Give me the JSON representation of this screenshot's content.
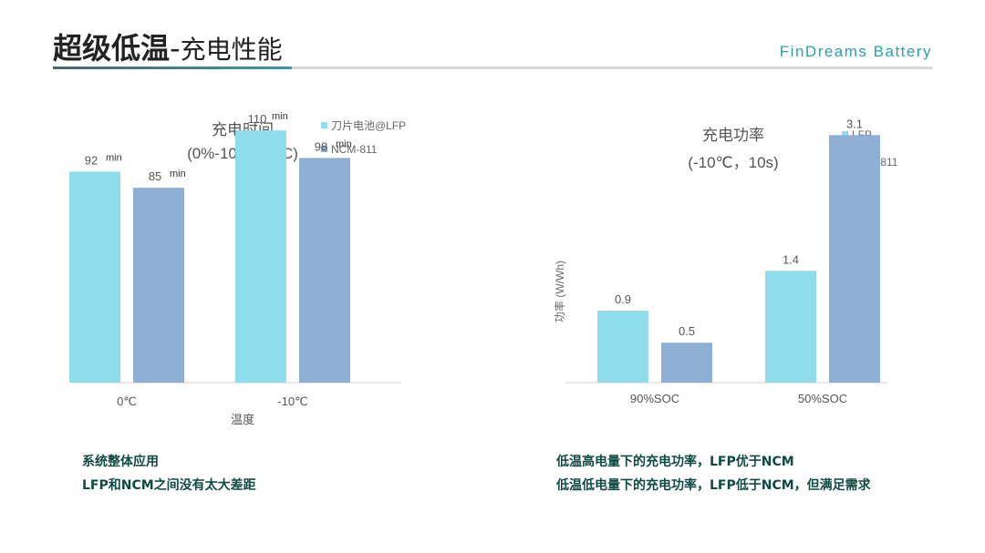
{
  "header": {
    "title_main": "超级低温",
    "title_dash": "-",
    "title_sub": "充电性能",
    "brand": "FinDreams Battery",
    "colors": {
      "title": "#222222",
      "brand": "#2aa0b0",
      "accent_rule": "#3e96a8"
    }
  },
  "chart_data": [
    {
      "type": "bar",
      "title": "充电时间",
      "subtitle": "(0%-100%SOC)",
      "xlabel": "温度",
      "ylabel": "",
      "categories": [
        "0℃",
        "-10℃"
      ],
      "series": [
        {
          "name": "刀片电池@LFP",
          "values": [
            92,
            110
          ],
          "color": "#8fdcec"
        },
        {
          "name": "NCM-811",
          "values": [
            85,
            98
          ],
          "color": "#8eb0d4"
        }
      ],
      "value_unit": "min",
      "ylim": [
        0,
        120
      ],
      "grid": false,
      "legend": "top-right"
    },
    {
      "type": "bar",
      "title": "充电功率",
      "subtitle": "(-10℃，10s)",
      "xlabel": "",
      "ylabel": "功率 (W/Wh)",
      "categories": [
        "90%SOC",
        "50%SOC"
      ],
      "series": [
        {
          "name": "LFP",
          "values": [
            0.9,
            1.4
          ],
          "color": "#8fdcec"
        },
        {
          "name": "NCM-811",
          "values": [
            0.5,
            3.1
          ],
          "color": "#8eb0d4"
        }
      ],
      "ylim": [
        0,
        3.4
      ],
      "grid": false,
      "legend": "top-right"
    }
  ],
  "captions": {
    "left": [
      "系统整体应用",
      "LFP和NCM之间没有太大差距"
    ],
    "right": [
      "低温高电量下的充电功率，LFP优于NCM",
      "低温低电量下的充电功率，LFP低于NCM，但满足需求"
    ]
  }
}
